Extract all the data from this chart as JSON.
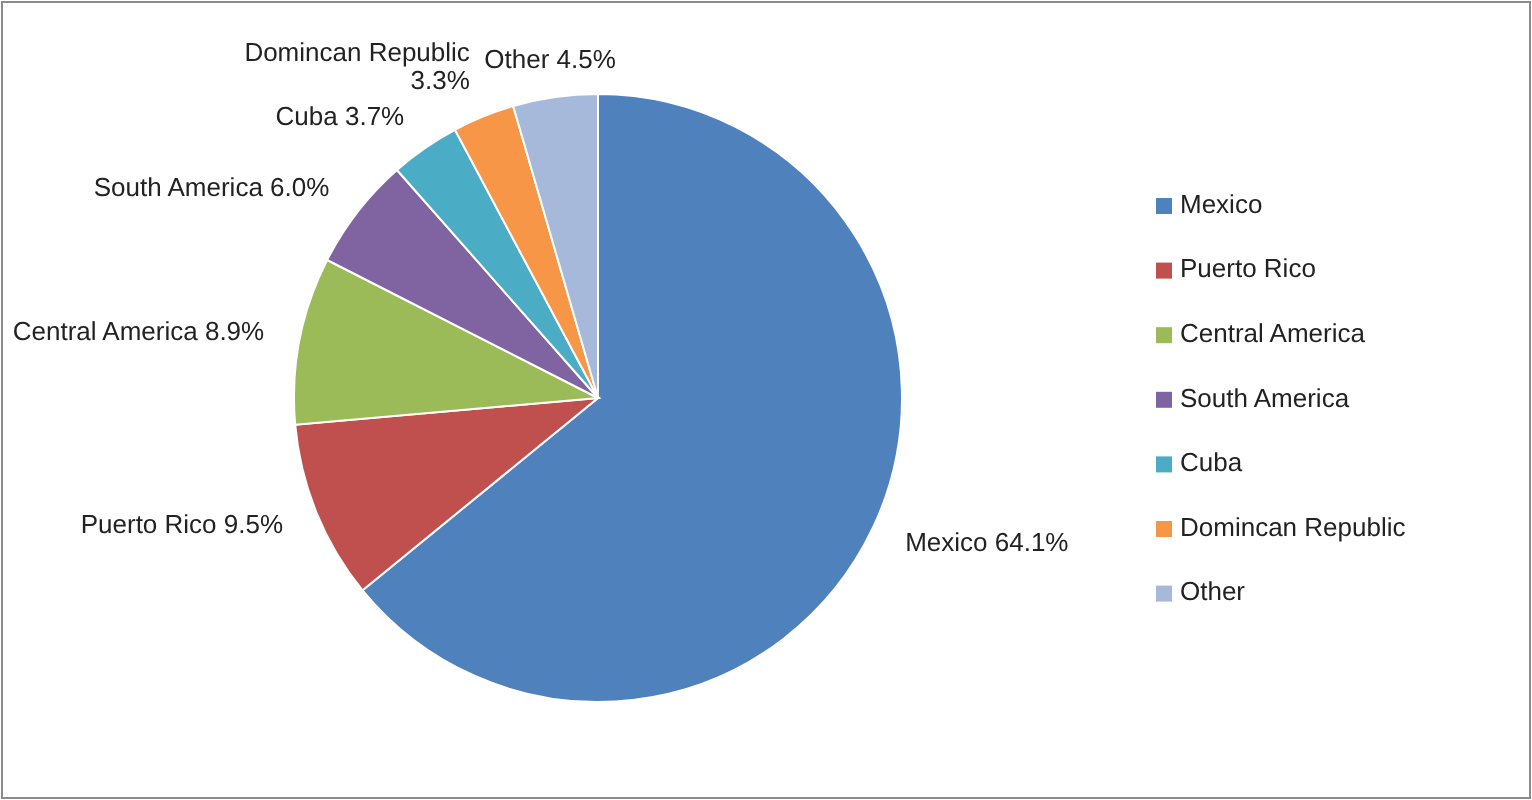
{
  "chart_data": {
    "type": "pie",
    "categories": [
      "Mexico",
      "Puerto Rico",
      "Central America",
      "South America",
      "Cuba",
      "Domincan Republic",
      "Other"
    ],
    "values": [
      64.1,
      9.5,
      8.9,
      6.0,
      3.7,
      3.3,
      4.5
    ],
    "colors": [
      "#4f81bd",
      "#c0504d",
      "#9bbb59",
      "#8064a2",
      "#4bacc6",
      "#f79646",
      "#a6b9db"
    ],
    "value_labels": [
      "64.1%",
      "9.5%",
      "8.9%",
      "6.0%",
      "3.7%",
      "3.3%",
      "4.5%"
    ],
    "legend": "right"
  }
}
